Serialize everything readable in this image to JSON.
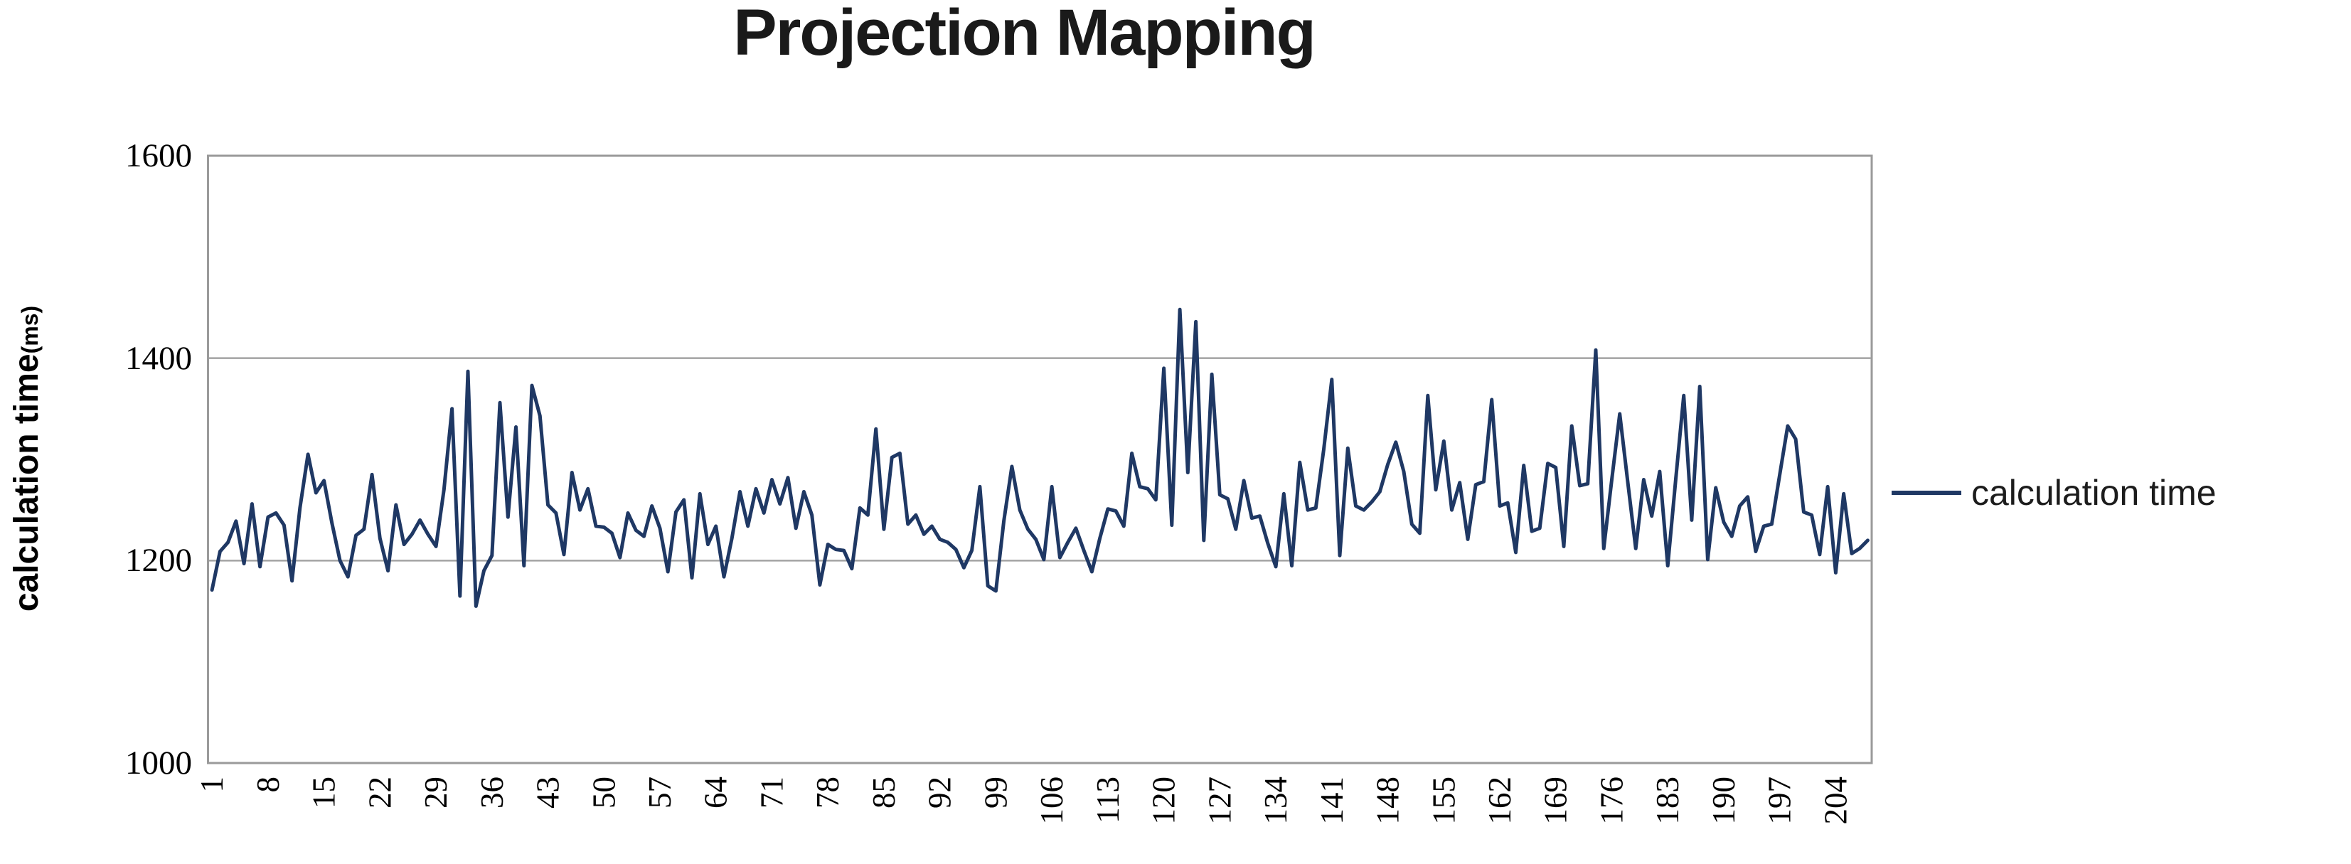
{
  "page": {
    "background": "#ffffff"
  },
  "header": {
    "title": "Projection Mapping"
  },
  "y_axis": {
    "label": "calculation time",
    "unit": "(ms)"
  },
  "legend": {
    "label": "calculation time"
  },
  "colors": {
    "line": "#1f3864",
    "grid": "#a3a3a3",
    "border": "#9a9a9a",
    "title_text": "#1a1a1a",
    "tick_text": "#000000"
  },
  "chart_data": {
    "type": "line",
    "title": "Projection Mapping",
    "ylabel": "calculation time(ms)",
    "xlabel": "",
    "ylim": [
      1000,
      1600
    ],
    "ytick_interval": 200,
    "grid": "horizontal",
    "legend_position": "middle-right",
    "n_points": 208,
    "x_tick_step": 7,
    "y_tick_labels": [
      "1600",
      "1400",
      "1200",
      "1000"
    ],
    "x_tick_labels": [
      "1",
      "8",
      "15",
      "22",
      "29",
      "36",
      "43",
      "50",
      "57",
      "64",
      "71",
      "78",
      "85",
      "92",
      "99",
      "106",
      "113",
      "120",
      "127",
      "134",
      "141",
      "148",
      "155",
      "162",
      "169",
      "176",
      "183",
      "190",
      "197",
      "204"
    ],
    "series": [
      {
        "name": "calculation time",
        "values": [
          1171,
          1209,
          1218,
          1239,
          1197,
          1256,
          1194,
          1243,
          1247,
          1235,
          1180,
          1252,
          1305,
          1267,
          1279,
          1237,
          1200,
          1184,
          1225,
          1231,
          1285,
          1222,
          1190,
          1255,
          1216,
          1226,
          1240,
          1226,
          1214,
          1270,
          1350,
          1165,
          1387,
          1155,
          1190,
          1205,
          1356,
          1243,
          1332,
          1195,
          1373,
          1343,
          1255,
          1247,
          1206,
          1287,
          1250,
          1271,
          1234,
          1233,
          1227,
          1203,
          1247,
          1230,
          1224,
          1254,
          1232,
          1189,
          1248,
          1260,
          1183,
          1266,
          1216,
          1234,
          1184,
          1222,
          1268,
          1234,
          1271,
          1247,
          1280,
          1256,
          1282,
          1232,
          1268,
          1245,
          1176,
          1216,
          1211,
          1210,
          1192,
          1252,
          1245,
          1330,
          1231,
          1302,
          1306,
          1236,
          1245,
          1226,
          1234,
          1221,
          1218,
          1211,
          1193,
          1210,
          1273,
          1175,
          1170,
          1239,
          1293,
          1250,
          1231,
          1221,
          1201,
          1273,
          1203,
          1218,
          1232,
          1210,
          1189,
          1222,
          1251,
          1249,
          1234,
          1306,
          1273,
          1271,
          1260,
          1390,
          1235,
          1448,
          1287,
          1436,
          1220,
          1384,
          1265,
          1261,
          1231,
          1279,
          1242,
          1244,
          1217,
          1194,
          1266,
          1195,
          1297,
          1250,
          1252,
          1310,
          1379,
          1205,
          1311,
          1254,
          1250,
          1258,
          1268,
          1295,
          1317,
          1288,
          1236,
          1227,
          1363,
          1270,
          1318,
          1250,
          1277,
          1221,
          1275,
          1278,
          1359,
          1254,
          1257,
          1208,
          1294,
          1229,
          1232,
          1296,
          1292,
          1214,
          1333,
          1274,
          1276,
          1408,
          1212,
          1280,
          1345,
          1278,
          1212,
          1280,
          1244,
          1288,
          1195,
          1280,
          1363,
          1240,
          1372,
          1201,
          1272,
          1238,
          1224,
          1254,
          1263,
          1209,
          1234,
          1236,
          1285,
          1333,
          1320,
          1248,
          1245,
          1206,
          1273,
          1188,
          1266,
          1207,
          1212,
          1220
        ]
      }
    ]
  }
}
